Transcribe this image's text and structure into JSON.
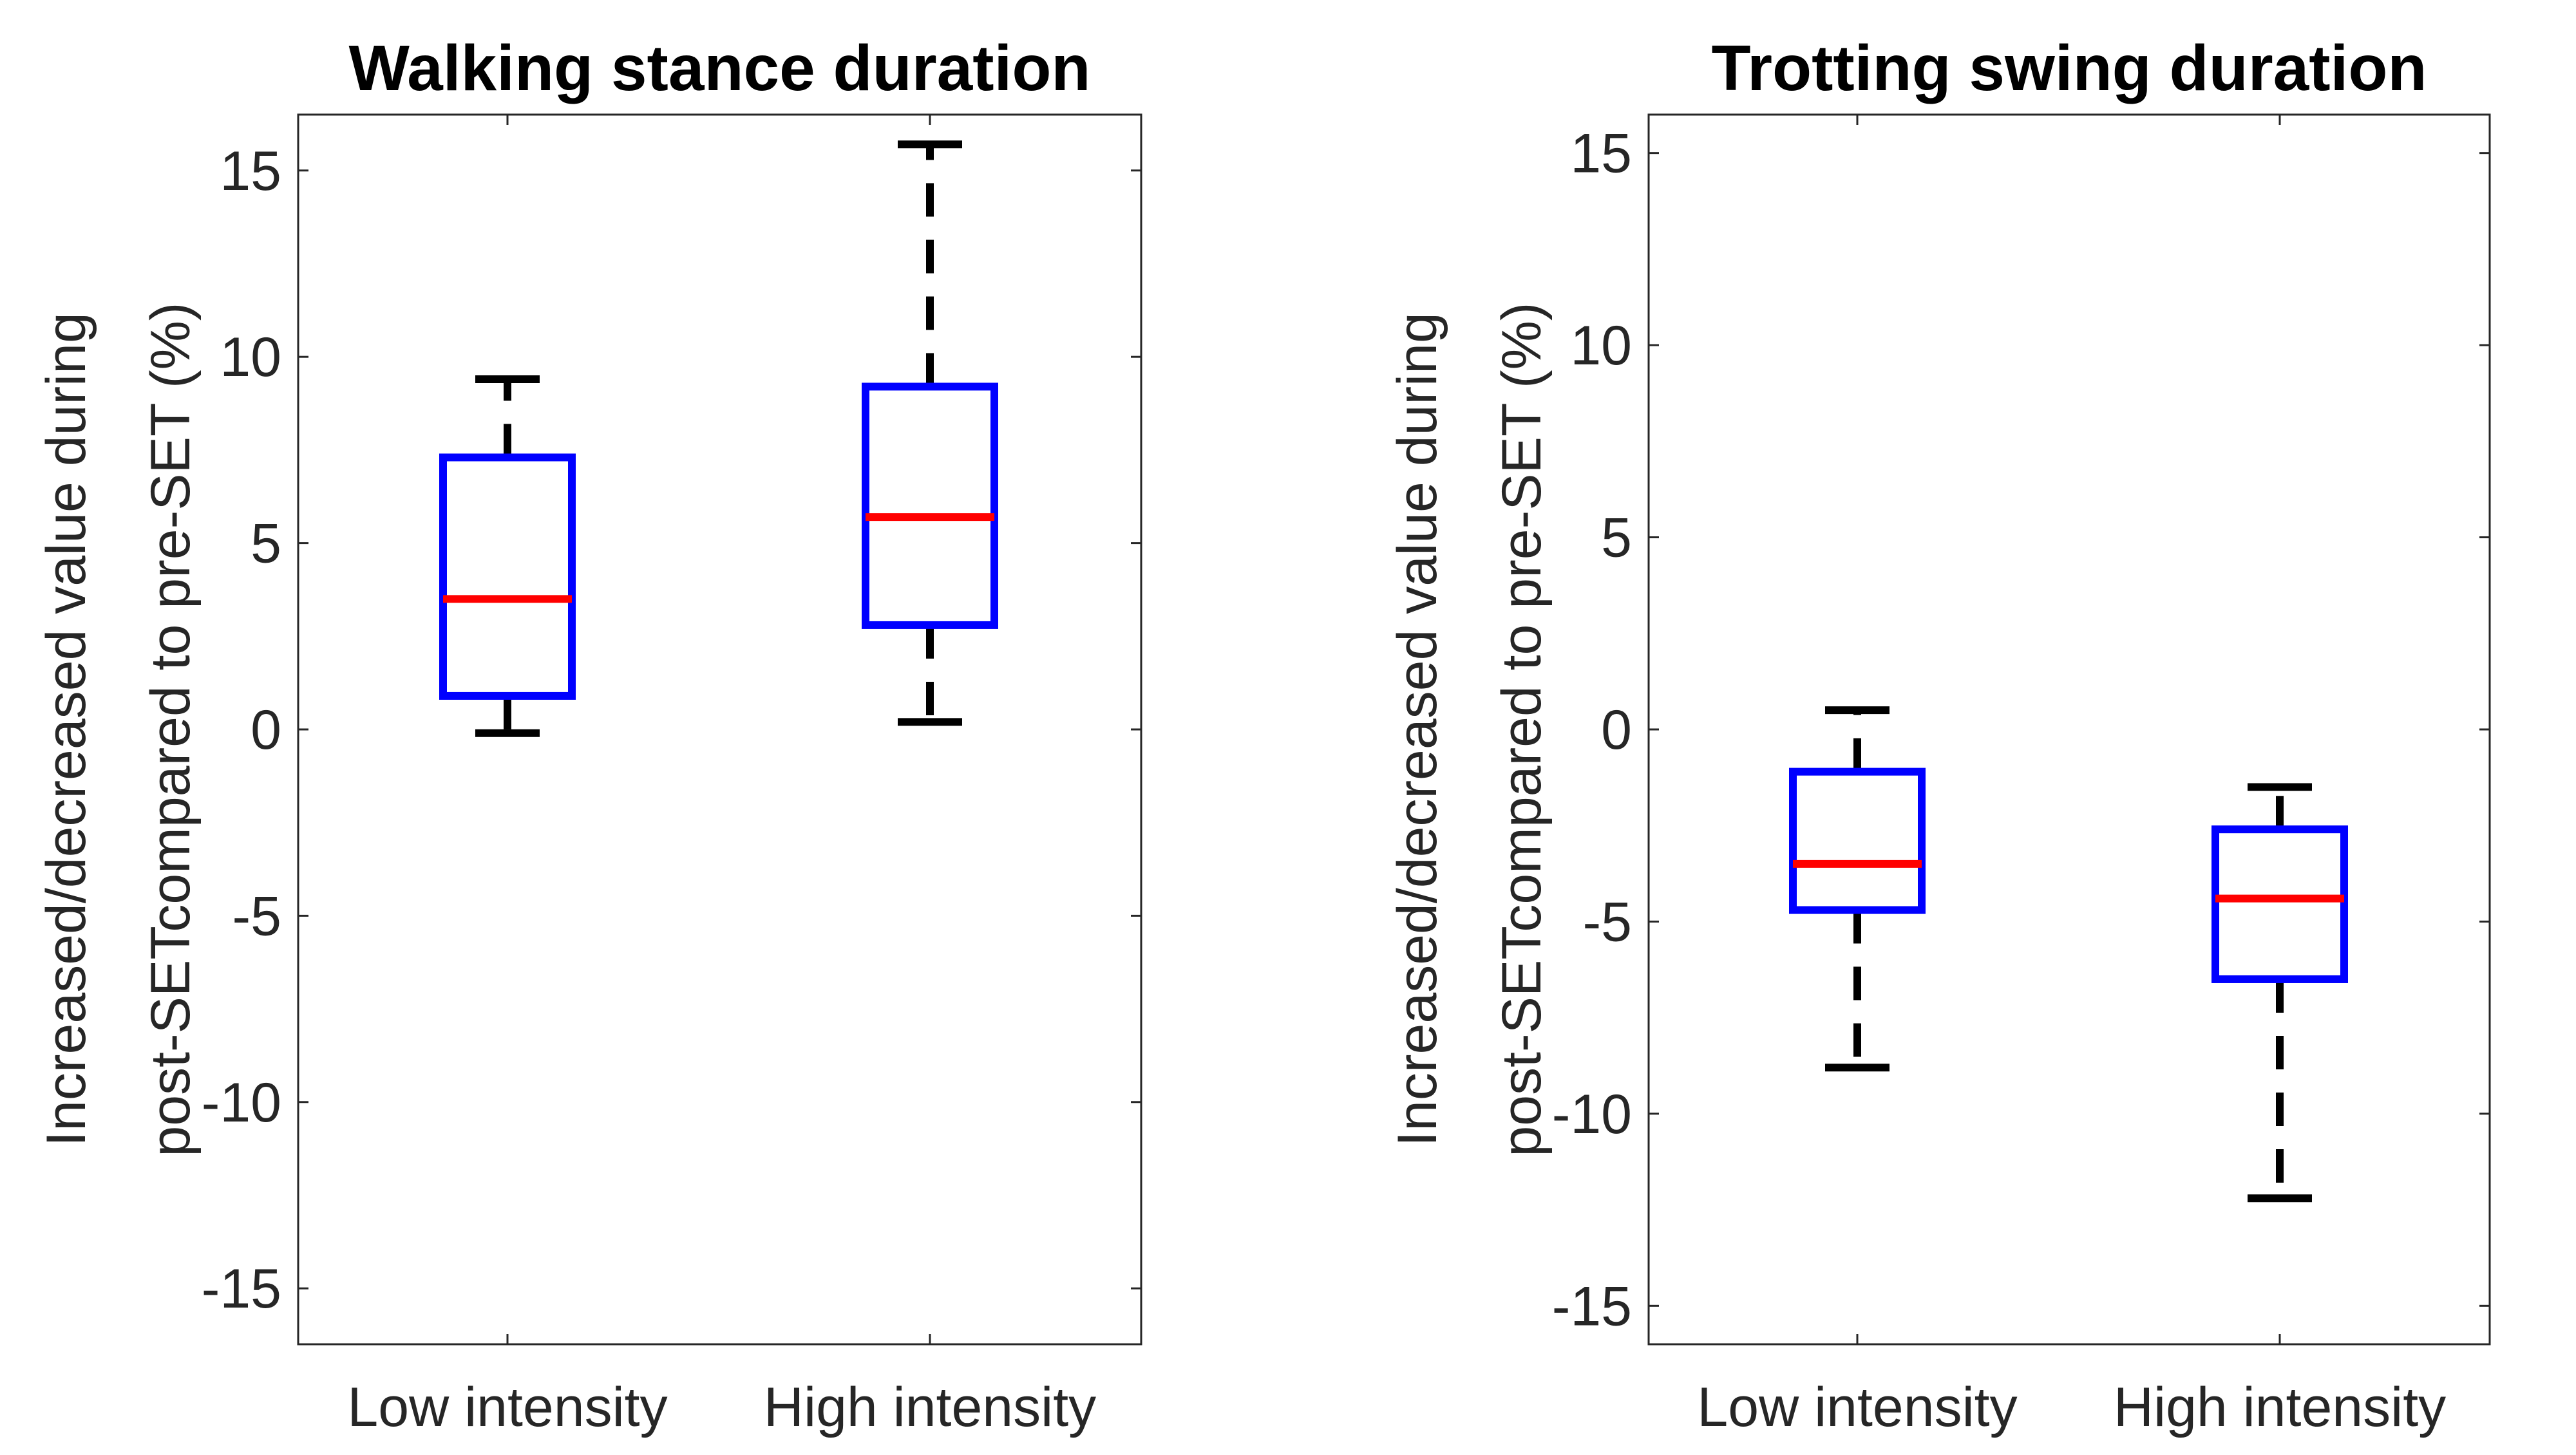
{
  "chart_data": [
    {
      "type": "box",
      "title": "Walking stance duration",
      "ylabel_lines": [
        "Increased/decreased value during",
        "post-SETcompared to pre-SET (%)"
      ],
      "xlabel": "",
      "categories": [
        "Low intensity",
        "High intensity"
      ],
      "ylim": [
        -16.5,
        16.5
      ],
      "yticks": [
        -15,
        -10,
        -5,
        0,
        5,
        10,
        15
      ],
      "ytick_labels": [
        "-15",
        "-10",
        "-5",
        "0",
        "5",
        "10",
        "15"
      ],
      "grid": false,
      "boxes": [
        {
          "category": "Low intensity",
          "whisker_low": -0.1,
          "q1": 0.9,
          "median": 3.5,
          "q3": 7.3,
          "whisker_high": 9.4
        },
        {
          "category": "High intensity",
          "whisker_low": 0.2,
          "q1": 2.8,
          "median": 5.7,
          "q3": 9.2,
          "whisker_high": 15.7
        }
      ]
    },
    {
      "type": "box",
      "title": "Trotting swing duration",
      "ylabel_lines": [
        "Increased/decreased value during",
        "post-SETcompared to pre-SET (%)"
      ],
      "xlabel": "",
      "categories": [
        "Low intensity",
        "High intensity"
      ],
      "ylim": [
        -16,
        16
      ],
      "yticks": [
        -15,
        -10,
        -5,
        0,
        5,
        10,
        15
      ],
      "ytick_labels": [
        "-15",
        "-10",
        "-5",
        "0",
        "5",
        "10",
        "15"
      ],
      "grid": false,
      "boxes": [
        {
          "category": "Low intensity",
          "whisker_low": -8.8,
          "q1": -4.7,
          "median": -3.5,
          "q3": -1.1,
          "whisker_high": 0.5
        },
        {
          "category": "High intensity",
          "whisker_low": -12.2,
          "q1": -6.5,
          "median": -4.4,
          "q3": -2.6,
          "whisker_high": -1.5
        }
      ]
    }
  ],
  "colors": {
    "box": "#0000FF",
    "median": "#FF0000",
    "whisker": "#000000",
    "axis": "#262626"
  }
}
